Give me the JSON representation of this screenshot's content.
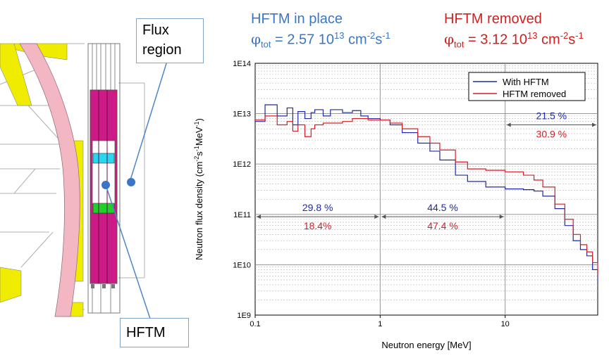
{
  "colors": {
    "with_hftm": "#1f2aa8",
    "hftm_removed": "#d21f2a",
    "header_blue": "#3b76c4",
    "header_red": "#d02020",
    "magenta": "#cc1b86",
    "pink": "#f3b6c3",
    "yellow": "#f0ec00",
    "cyan": "#27d8f0",
    "green": "#1fd02a"
  },
  "schematic": {
    "flux_region_label": "Flux region",
    "hftm_label": "HFTM"
  },
  "header": {
    "in_place": {
      "title": "HFTM in place",
      "phi": "φ",
      "sub": "tot",
      "value": "= 2.57 10",
      "exp": "13",
      "unit": "cm",
      "unit_exp1": "-2",
      "unit_mid": "s",
      "unit_exp2": "-1"
    },
    "removed": {
      "title": "HFTM removed",
      "phi": "φ",
      "sub": "tot",
      "value": "= 3.12 10",
      "exp": "13",
      "unit": "cm",
      "unit_exp1": "-2",
      "unit_mid": "s",
      "unit_exp2": "-1"
    }
  },
  "chart_data": {
    "type": "line",
    "xlabel": "Neutron energy [MeV]",
    "ylabel": "Neutron flux density (cm-2s-1MeV-1)",
    "x_scale": "log",
    "y_scale": "log",
    "xlim": [
      0.1,
      55
    ],
    "ylim": [
      1000000000.0,
      100000000000000.0
    ],
    "x_ticks": [
      "0.1",
      "1",
      "10"
    ],
    "y_ticks": [
      "1E9",
      "1E10",
      "1E11",
      "1E12",
      "1E13",
      "1E14"
    ],
    "grid": true,
    "legend_position": "top-right",
    "series": [
      {
        "name": "With HFTM",
        "x": [
          0.1,
          0.12,
          0.15,
          0.18,
          0.2,
          0.22,
          0.25,
          0.28,
          0.3,
          0.35,
          0.4,
          0.5,
          0.6,
          0.7,
          0.8,
          1.0,
          1.2,
          1.5,
          2.0,
          2.5,
          3.0,
          4.0,
          5.0,
          7.0,
          10.0,
          14.0,
          17.0,
          20.0,
          25.0,
          30.0,
          35.0,
          40.0,
          45.0,
          50.0,
          55.0
        ],
        "y": [
          7000000000000.0,
          15000000000000.0,
          9000000000000.0,
          13000000000000.0,
          6000000000000.0,
          11000000000000.0,
          8000000000000.0,
          10500000000000.0,
          12000000000000.0,
          9000000000000.0,
          12000000000000.0,
          10500000000000.0,
          11500000000000.0,
          9000000000000.0,
          8000000000000.0,
          7500000000000.0,
          6000000000000.0,
          4200000000000.0,
          2600000000000.0,
          1800000000000.0,
          1200000000000.0,
          600000000000.0,
          450000000000.0,
          350000000000.0,
          320000000000.0,
          310000000000.0,
          290000000000.0,
          230000000000.0,
          130000000000.0,
          60000000000.0,
          30000000000.0,
          20000000000.0,
          15000000000.0,
          8000000000.0,
          4500000000.0
        ]
      },
      {
        "name": "HFTM removed",
        "x": [
          0.1,
          0.12,
          0.15,
          0.18,
          0.2,
          0.22,
          0.25,
          0.28,
          0.3,
          0.35,
          0.4,
          0.5,
          0.6,
          0.7,
          0.8,
          1.0,
          1.2,
          1.5,
          2.0,
          2.5,
          3.0,
          4.0,
          5.0,
          7.0,
          10.0,
          14.0,
          17.0,
          20.0,
          25.0,
          30.0,
          35.0,
          40.0,
          45.0,
          50.0,
          55.0
        ],
        "y": [
          7500000000000.0,
          9000000000000.0,
          6000000000000.0,
          7000000000000.0,
          4500000000000.0,
          6000000000000.0,
          3500000000000.0,
          5000000000000.0,
          6000000000000.0,
          6500000000000.0,
          6500000000000.0,
          7000000000000.0,
          8000000000000.0,
          8000000000000.0,
          7500000000000.0,
          7500000000000.0,
          6500000000000.0,
          5000000000000.0,
          3500000000000.0,
          2600000000000.0,
          1900000000000.0,
          1100000000000.0,
          800000000000.0,
          750000000000.0,
          700000000000.0,
          600000000000.0,
          480000000000.0,
          350000000000.0,
          160000000000.0,
          80000000000.0,
          40000000000.0,
          25000000000.0,
          18000000000.0,
          11000000000.0,
          6000000000.0
        ]
      }
    ],
    "annotations": [
      {
        "range": "0.1-1 MeV",
        "with_hftm": "29.8 %",
        "hftm_removed": "18.4%"
      },
      {
        "range": "1-10 MeV",
        "with_hftm": "44.5 %",
        "hftm_removed": "47.4 %"
      },
      {
        "range": ">10 MeV",
        "with_hftm": "21.5 %",
        "hftm_removed": "30.9 %"
      }
    ]
  }
}
